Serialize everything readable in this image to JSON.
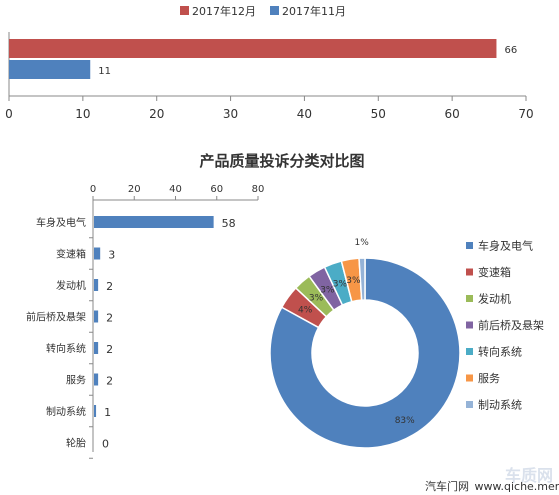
{
  "chart_data": [
    {
      "type": "bar",
      "orientation": "horizontal",
      "series": [
        {
          "name": "2017年12月",
          "values": [
            66
          ],
          "color": "#c0504d"
        },
        {
          "name": "2017年11月",
          "values": [
            11
          ],
          "color": "#4f81bd"
        }
      ],
      "xlim": [
        0,
        70
      ],
      "xticks": [
        0,
        10,
        20,
        30,
        40,
        50,
        60,
        70
      ],
      "grid": false,
      "legend_position": "top"
    },
    {
      "type": "bar",
      "orientation": "horizontal",
      "title": "产品质量投诉分类对比图",
      "categories": [
        "车身及电气",
        "变速箱",
        "发动机",
        "前后桥及悬架",
        "转向系统",
        "服务",
        "制动系统",
        "轮胎"
      ],
      "values": [
        58,
        3,
        2,
        2,
        2,
        2,
        1,
        0
      ],
      "color": "#4f81bd",
      "xlim": [
        0,
        80
      ],
      "xticks": [
        0,
        20,
        40,
        60,
        80
      ],
      "axis_position": "top"
    },
    {
      "type": "pie",
      "style": "donut",
      "labels": [
        "车身及电气",
        "变速箱",
        "发动机",
        "前后桥及悬架",
        "转向系统",
        "服务",
        "制动系统"
      ],
      "values": [
        83,
        4,
        3,
        3,
        3,
        3,
        1
      ],
      "value_labels": [
        "83%",
        "4%",
        "3%",
        "3%",
        "3%",
        "3%",
        "1%"
      ],
      "colors": [
        "#4f81bd",
        "#c0504d",
        "#9bbb59",
        "#8064a2",
        "#4bacc6",
        "#f79646",
        "#95b3d7"
      ],
      "legend_position": "right"
    }
  ],
  "footer": {
    "site": "汽车门网",
    "url": "www.qiche.men..."
  },
  "watermark": "车质网"
}
